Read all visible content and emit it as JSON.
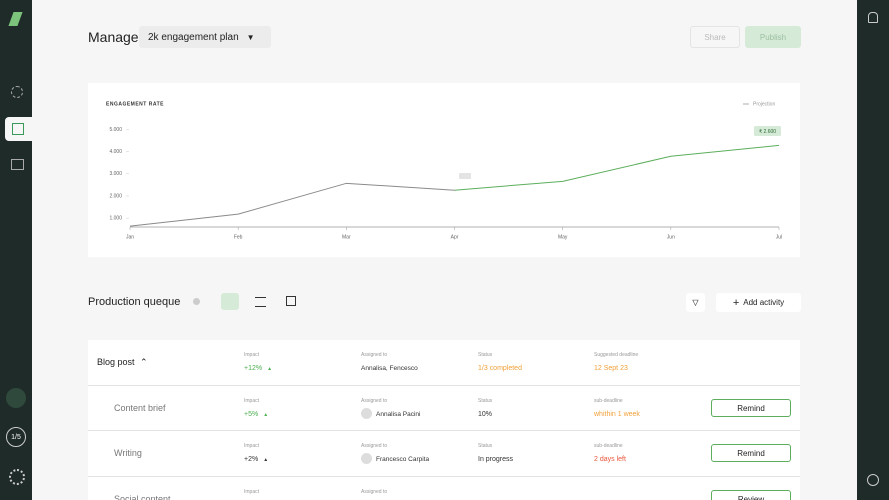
{
  "header": {
    "title": "Manage",
    "plan": "2k engagement plan",
    "share": "Share",
    "publish": "Publish"
  },
  "sidebar": {
    "progress": "1/5"
  },
  "chart_data": {
    "type": "line",
    "title": "ENGAGEMENT RATE",
    "categories": [
      "Jan",
      "Feb",
      "Mar",
      "Apr",
      "May",
      "Jun",
      "Jul"
    ],
    "series": [
      {
        "color": "#8a8a8a",
        "values": [
          640,
          1180,
          2570,
          2260,
          null,
          null,
          null
        ]
      },
      {
        "name": "Projection",
        "color": "#5cae5c",
        "values": [
          null,
          null,
          null,
          2260,
          2660,
          3790,
          4280
        ]
      }
    ],
    "ylim": [
      600,
      5200
    ],
    "yticks": [
      {
        "value": 1000,
        "label": "1.000"
      },
      {
        "value": 2000,
        "label": "2.000"
      },
      {
        "value": 3000,
        "label": "3.000"
      },
      {
        "value": 4000,
        "label": "4.000"
      },
      {
        "value": 5000,
        "label": "5.000"
      }
    ],
    "annotation": "₹ 2.600",
    "legend": "top-right"
  },
  "queue": {
    "title": "Production queque",
    "add": "Add activity",
    "rows": [
      {
        "name": "Blog post",
        "impact_label": "Impact",
        "impact": "+12%",
        "impact_color": "#4caf50",
        "assigned_label": "Assigned to",
        "assigned": "Annalisa, Fencesco",
        "status_label": "Status",
        "status": "1/3 completed",
        "status_color": "#f0a13a",
        "deadline_label": "Suggested deadline",
        "deadline": "12 Sept 23",
        "deadline_color": "#f0a13a"
      },
      {
        "name": "Content brief",
        "impact_label": "Impact",
        "impact": "+5%",
        "impact_color": "#4caf50",
        "assigned_label": "Assigned to",
        "assigned": "Annalisa Pacini",
        "status_label": "Status",
        "status": "10%",
        "status_color": "#333",
        "deadline_label": "sub-deadline",
        "deadline": "whithin 1 week",
        "deadline_color": "#f0a13a",
        "action": "Remind"
      },
      {
        "name": "Writing",
        "impact_label": "Impact",
        "impact": "+2%",
        "impact_color": "#333",
        "assigned_label": "Assigned to",
        "assigned": "Francesco Carpita",
        "status_label": "Status",
        "status": "In progress",
        "status_color": "#333",
        "deadline_label": "sub-deadline",
        "deadline": "2 days left",
        "deadline_color": "#e8553a",
        "action": "Remind"
      },
      {
        "name": "Social content",
        "impact_label": "Impact",
        "assigned_label": "Assigned to",
        "action": "Review"
      }
    ]
  }
}
